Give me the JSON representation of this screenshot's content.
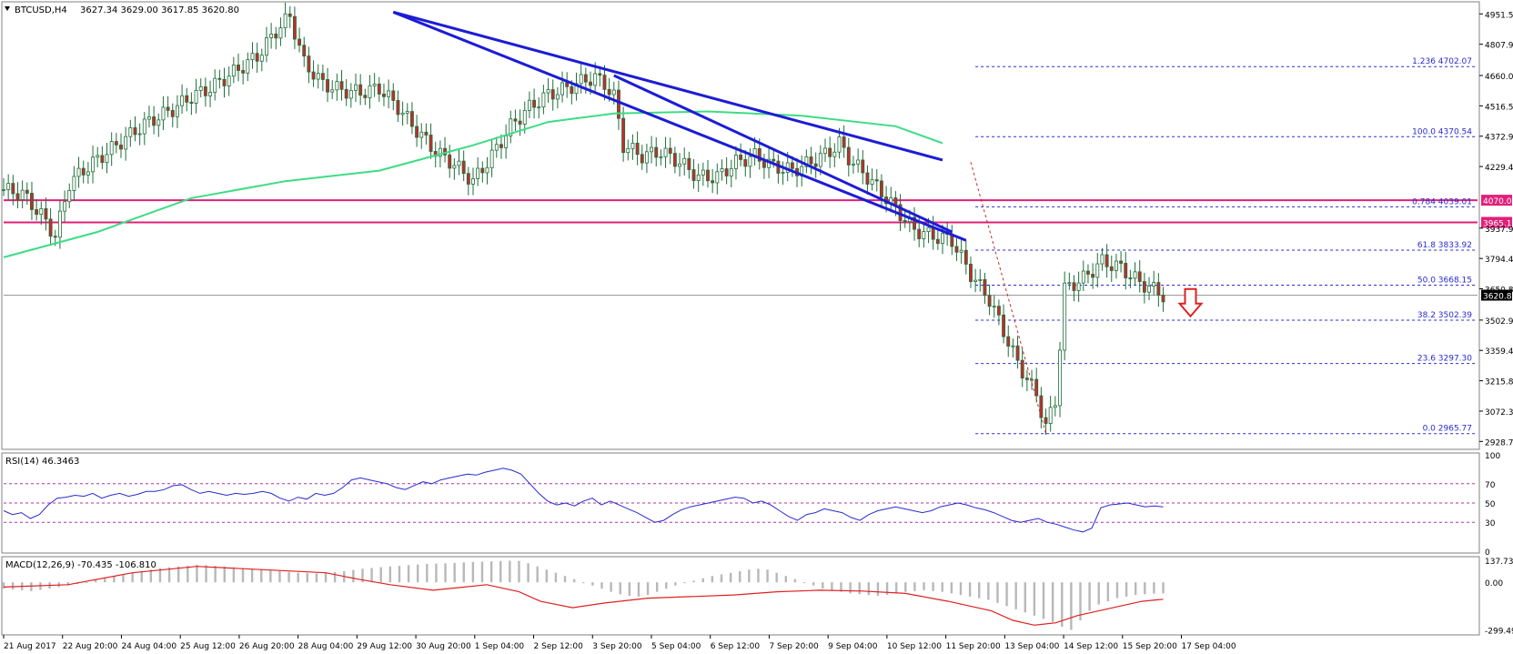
{
  "header": {
    "symbol": "BTCUSD,H4",
    "ohlc": "3627.34 3629.00 3617.85 3620.80"
  },
  "colors": {
    "background": "#ffffff",
    "bull_candle": "#ffffff",
    "bear_candle": "#c42b2b",
    "candle_outline": "#1f6e3a",
    "moving_average": "#3ddc84",
    "trendline": "#1c1cd6",
    "resistance": "#e0207a",
    "fib_line": "#2a2ad0",
    "rsi_line": "#2a2ad0",
    "rsi_levels": "#b030b0",
    "macd_hist": "#b8b8b8",
    "macd_signal": "#e02020",
    "arrow": "#e02020"
  },
  "chart_data": [
    {
      "type": "candlestick",
      "title": "BTCUSD,H4",
      "y_ticks": [
        "4951.50",
        "4807.95",
        "4660.05",
        "4516.50",
        "4372.95",
        "4229.40",
        "4070.06",
        "3965.11",
        "3937.95",
        "3794.40",
        "3650.85",
        "3620.80",
        "3502.95",
        "3359.40",
        "3215.85",
        "3072.30",
        "2928.75"
      ],
      "ylim": [
        2900,
        5000
      ],
      "current_price": "3620.80",
      "resistance_levels": [
        {
          "value": 4070.06,
          "label": "4070.06"
        },
        {
          "value": 3965.11,
          "label": "3965.11"
        }
      ],
      "fib_levels": [
        {
          "value": 4702.07,
          "label": "1.236 4702.07"
        },
        {
          "value": 4370.54,
          "label": "100.0 4370.54"
        },
        {
          "value": 4039.01,
          "label": "0.784 4039.01"
        },
        {
          "value": 3833.92,
          "label": "61.8 3833.92"
        },
        {
          "value": 3668.15,
          "label": "50.0 3668.15"
        },
        {
          "value": 3502.39,
          "label": "38.2 3502.39"
        },
        {
          "value": 3297.3,
          "label": "23.6 3297.30"
        },
        {
          "value": 2965.77,
          "label": "0.0 2965.77"
        }
      ],
      "close_path": [
        [
          0,
          4120
        ],
        [
          4,
          4100
        ],
        [
          8,
          4000
        ],
        [
          11,
          3900
        ],
        [
          14,
          4150
        ],
        [
          18,
          4230
        ],
        [
          24,
          4330
        ],
        [
          30,
          4430
        ],
        [
          36,
          4500
        ],
        [
          40,
          4560
        ],
        [
          44,
          4600
        ],
        [
          48,
          4660
        ],
        [
          54,
          4750
        ],
        [
          58,
          4870
        ],
        [
          61,
          4940
        ],
        [
          64,
          4720
        ],
        [
          68,
          4620
        ],
        [
          72,
          4590
        ],
        [
          76,
          4580
        ],
        [
          80,
          4600
        ],
        [
          84,
          4510
        ],
        [
          88,
          4400
        ],
        [
          92,
          4300
        ],
        [
          96,
          4240
        ],
        [
          100,
          4160
        ],
        [
          104,
          4280
        ],
        [
          108,
          4420
        ],
        [
          112,
          4510
        ],
        [
          116,
          4570
        ],
        [
          120,
          4600
        ],
        [
          124,
          4640
        ],
        [
          126,
          4650
        ],
        [
          128,
          4620
        ],
        [
          130,
          4560
        ],
        [
          132,
          4330
        ],
        [
          136,
          4280
        ],
        [
          140,
          4300
        ],
        [
          144,
          4250
        ],
        [
          148,
          4180
        ],
        [
          152,
          4180
        ],
        [
          156,
          4250
        ],
        [
          160,
          4280
        ],
        [
          164,
          4230
        ],
        [
          168,
          4210
        ],
        [
          172,
          4250
        ],
        [
          176,
          4300
        ],
        [
          178,
          4340
        ],
        [
          180,
          4270
        ],
        [
          184,
          4180
        ],
        [
          188,
          4080
        ],
        [
          190,
          4030
        ],
        [
          194,
          3930
        ],
        [
          198,
          3900
        ],
        [
          202,
          3880
        ],
        [
          206,
          3720
        ],
        [
          210,
          3600
        ],
        [
          214,
          3400
        ],
        [
          216,
          3300
        ],
        [
          220,
          3150
        ],
        [
          222,
          3000
        ],
        [
          224,
          3120
        ],
        [
          226,
          3650
        ],
        [
          230,
          3700
        ],
        [
          234,
          3780
        ],
        [
          238,
          3750
        ],
        [
          242,
          3680
        ],
        [
          244,
          3660
        ],
        [
          247,
          3620
        ]
      ],
      "moving_average": [
        [
          0,
          3800
        ],
        [
          20,
          3920
        ],
        [
          40,
          4080
        ],
        [
          60,
          4160
        ],
        [
          80,
          4210
        ],
        [
          100,
          4330
        ],
        [
          116,
          4440
        ],
        [
          130,
          4480
        ],
        [
          150,
          4490
        ],
        [
          170,
          4470
        ],
        [
          190,
          4420
        ],
        [
          200,
          4340
        ]
      ],
      "trendlines": [
        {
          "from": [
            83,
            4960
          ],
          "to": [
            205,
            3880
          ]
        },
        {
          "from": [
            83,
            4960
          ],
          "to": [
            200,
            4260
          ]
        },
        {
          "from": [
            130,
            4660
          ],
          "to": [
            202,
            3920
          ]
        }
      ],
      "x_ticks": [
        "21 Aug 2017",
        "22 Aug 20:00",
        "24 Aug 04:00",
        "25 Aug 12:00",
        "26 Aug 20:00",
        "28 Aug 04:00",
        "29 Aug 12:00",
        "30 Aug 20:00",
        "1 Sep 04:00",
        "2 Sep 12:00",
        "3 Sep 20:00",
        "5 Sep 04:00",
        "6 Sep 12:00",
        "7 Sep 20:00",
        "9 Sep 04:00",
        "10 Sep 12:00",
        "11 Sep 20:00",
        "13 Sep 04:00",
        "14 Sep 12:00",
        "15 Sep 20:00",
        "17 Sep 04:00"
      ]
    },
    {
      "type": "line",
      "title": "RSI(14) 46.3463",
      "label": "RSI(14)",
      "value": "46.3463",
      "ylim": [
        0,
        100
      ],
      "y_ticks": [
        "100",
        "70",
        "50",
        "30",
        "0"
      ],
      "levels": [
        70,
        50,
        30
      ],
      "values": [
        42,
        38,
        40,
        34,
        38,
        48,
        55,
        56,
        58,
        57,
        60,
        55,
        58,
        60,
        57,
        59,
        62,
        62,
        64,
        68,
        69,
        64,
        60,
        62,
        60,
        58,
        60,
        59,
        60,
        62,
        60,
        55,
        52,
        56,
        54,
        60,
        58,
        60,
        66,
        74,
        76,
        74,
        72,
        70,
        66,
        64,
        68,
        72,
        70,
        74,
        76,
        78,
        80,
        79,
        82,
        84,
        86,
        84,
        80,
        70,
        60,
        52,
        48,
        50,
        47,
        52,
        55,
        48,
        52,
        48,
        44,
        40,
        35,
        30,
        32,
        38,
        43,
        46,
        48,
        50,
        52,
        54,
        56,
        55,
        50,
        52,
        48,
        42,
        36,
        32,
        38,
        40,
        44,
        42,
        40,
        35,
        32,
        38,
        42,
        44,
        46,
        44,
        42,
        40,
        42,
        46,
        48,
        50,
        48,
        45,
        43,
        40,
        36,
        32,
        30,
        32,
        34,
        30,
        28,
        25,
        22,
        20,
        24,
        45,
        48,
        49,
        50,
        48,
        46,
        47,
        46
      ]
    },
    {
      "type": "bar",
      "title": "MACD(12,26,9) -70.435 -106.810",
      "label": "MACD(12,26,9)",
      "values_text": "-70.435 -106.810",
      "ylim": [
        -320,
        150
      ],
      "y_ticks": [
        "137.732",
        "0.00",
        "-299.492"
      ],
      "histogram": [
        -40,
        -45,
        -50,
        -55,
        -48,
        -40,
        -30,
        -20,
        -10,
        0,
        15,
        30,
        40,
        50,
        60,
        70,
        80,
        90,
        95,
        100,
        105,
        110,
        108,
        104,
        100,
        95,
        90,
        85,
        80,
        75,
        70,
        65,
        60,
        58,
        56,
        60,
        65,
        70,
        78,
        85,
        90,
        95,
        100,
        104,
        108,
        112,
        116,
        118,
        120,
        122,
        125,
        128,
        130,
        132,
        134,
        136,
        135,
        120,
        100,
        80,
        60,
        40,
        20,
        0,
        -20,
        -40,
        -60,
        -75,
        -85,
        -90,
        -80,
        -60,
        -40,
        -20,
        -5,
        10,
        25,
        40,
        50,
        60,
        70,
        80,
        85,
        80,
        60,
        40,
        20,
        0,
        -20,
        -40,
        -50,
        -60,
        -70,
        -75,
        -80,
        -85,
        -80,
        -70,
        -60,
        -55,
        -50,
        -55,
        -60,
        -70,
        -80,
        -90,
        -100,
        -110,
        -130,
        -150,
        -170,
        -190,
        -210,
        -230,
        -250,
        -280,
        -300,
        -240,
        -180,
        -140,
        -120,
        -100,
        -90,
        -80,
        -75,
        -72,
        -70
      ],
      "signal": [
        [
          0,
          -30
        ],
        [
          30,
          -15
        ],
        [
          60,
          60
        ],
        [
          90,
          100
        ],
        [
          120,
          80
        ],
        [
          150,
          60
        ],
        [
          165,
          20
        ],
        [
          180,
          -15
        ],
        [
          200,
          -50
        ],
        [
          225,
          -15
        ],
        [
          240,
          -60
        ],
        [
          250,
          -120
        ],
        [
          265,
          -160
        ],
        [
          280,
          -130
        ],
        [
          300,
          -100
        ],
        [
          320,
          -90
        ],
        [
          340,
          -80
        ],
        [
          360,
          -60
        ],
        [
          380,
          -50
        ],
        [
          400,
          -55
        ],
        [
          420,
          -70
        ],
        [
          440,
          -120
        ],
        [
          460,
          -180
        ],
        [
          470,
          -240
        ],
        [
          480,
          -270
        ],
        [
          490,
          -255
        ],
        [
          500,
          -210
        ],
        [
          510,
          -180
        ],
        [
          520,
          -150
        ],
        [
          530,
          -120
        ],
        [
          540,
          -107
        ]
      ]
    }
  ]
}
